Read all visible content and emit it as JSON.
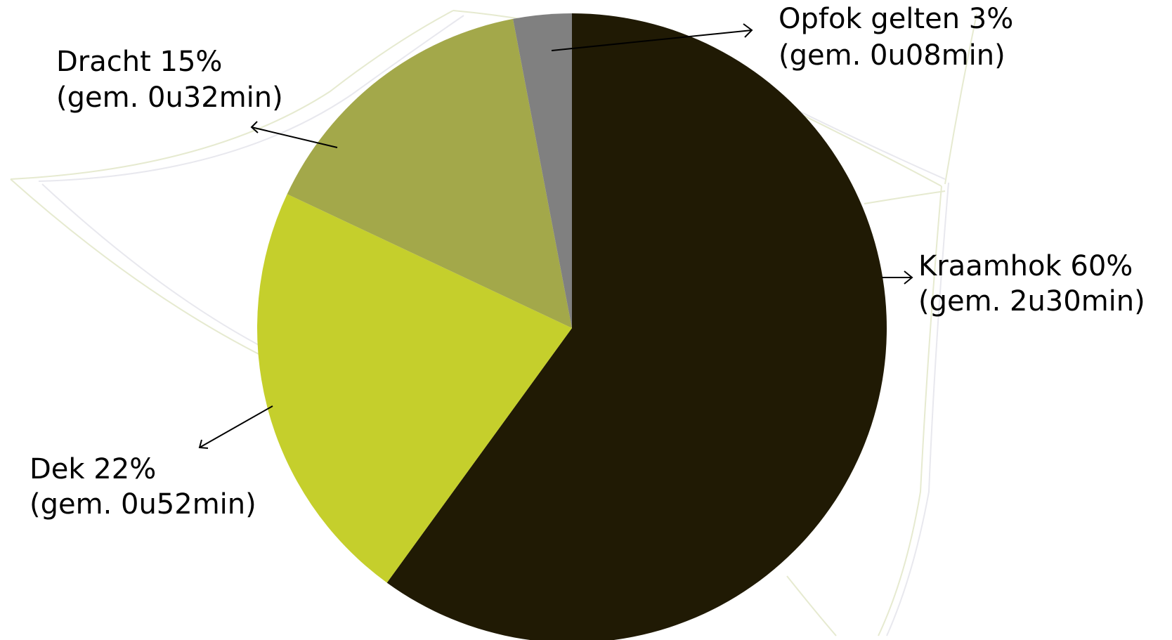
{
  "chart_data": {
    "type": "pie",
    "start_angle_deg": 0,
    "direction": "clockwise",
    "slices": [
      {
        "label": "Kraamhok 60%",
        "sublabel": "(gem. 2u30min)",
        "value": 60,
        "color": "#201a04"
      },
      {
        "label": "Dek 22%",
        "sublabel": "(gem. 0u52min)",
        "value": 22,
        "color": "#c5cf2c"
      },
      {
        "label": "Dracht 15%",
        "sublabel": "(gem. 0u32min)",
        "value": 15,
        "color": "#a3a84a"
      },
      {
        "label": "Opfok gelten 3%",
        "sublabel": "(gem. 0u08min)",
        "value": 3,
        "color": "#808080"
      }
    ],
    "legend": "none"
  }
}
